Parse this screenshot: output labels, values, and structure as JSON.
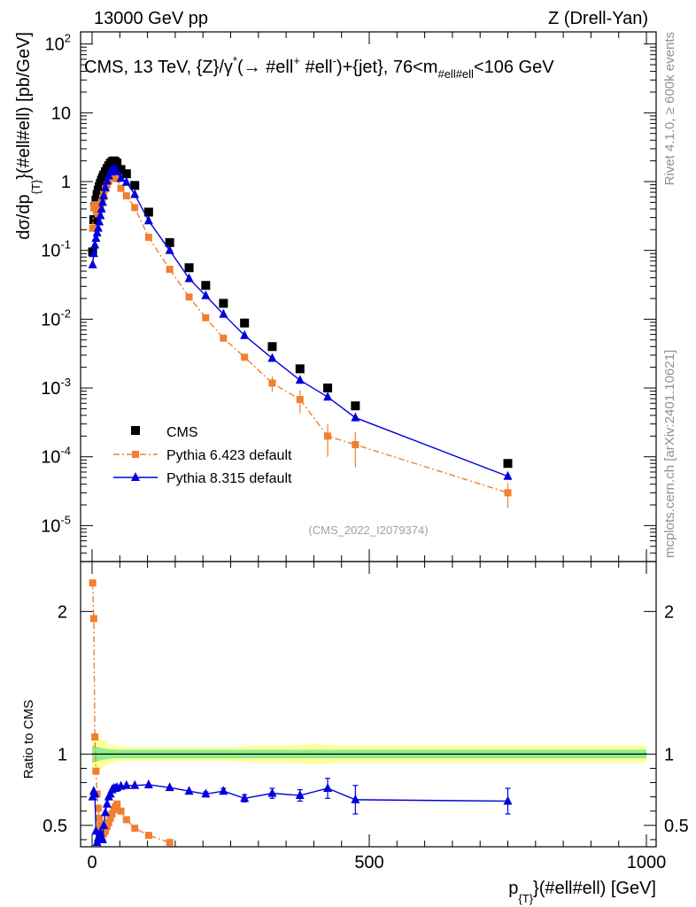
{
  "header": {
    "left": "13000 GeV pp",
    "right": "Z (Drell-Yan)"
  },
  "side_text": {
    "rivet": "Rivet 4.1.0, ≥ 600k events",
    "mcplots": "mcplots.cern.ch [arXiv:2401.10621]"
  },
  "analysis_id": "(CMS_2022_I2079374)",
  "colors": {
    "data": "#000000",
    "pythia6": "#f08030",
    "pythia8": "#0000dd",
    "band_inner": "#90ee90",
    "band_outer": "#ffff99"
  },
  "chart_data": [
    {
      "type": "scatter",
      "panel": "main",
      "title": "CMS, 13 TeV, {Z}/γ* (→ #ell+ #ell-)+{jet}, 76<m#ell#ell<106 GeV",
      "title_parts": {
        "main": "CMS, 13 TeV, {Z}/γ",
        "sup1": "*",
        "mid": "(→  #ell",
        "sup2": "+",
        "mid2": " #ell",
        "sup3": "-",
        "mid3": ")+{jet}, 76<m",
        "sub": "#ell#ell",
        "end": "<106 GeV"
      },
      "ylabel": "dσ/dp_{T}(#ell#ell) [pb/GeV]",
      "ylabel_parts": {
        "a": "dσ/dp",
        "sub": "{T}",
        "b": "}(#ell#ell) [pb/GeV]"
      },
      "yscale": "log",
      "ylim": [
        3e-06,
        150
      ],
      "xlim": [
        -5,
        1000
      ],
      "y_ticks": [
        {
          "base": "10",
          "exp": "2",
          "value": 100
        },
        {
          "base": "10",
          "exp": "",
          "value": 10
        },
        {
          "base": "1",
          "exp": "",
          "value": 1
        },
        {
          "base": "10",
          "exp": "-1",
          "value": 0.1
        },
        {
          "base": "10",
          "exp": "-2",
          "value": 0.01
        },
        {
          "base": "10",
          "exp": "-3",
          "value": 0.001
        },
        {
          "base": "10",
          "exp": "-4",
          "value": 0.0001
        },
        {
          "base": "10",
          "exp": "-5",
          "value": 1e-05
        }
      ],
      "legend": {
        "position": "bottom-left",
        "entries": [
          "CMS",
          "Pythia 6.423 default",
          "Pythia 8.315 default"
        ]
      },
      "series": [
        {
          "name": "CMS",
          "style": "square",
          "x": [
            1,
            3,
            5,
            7,
            9,
            11,
            13,
            15,
            17,
            19,
            21,
            24,
            27,
            30,
            33,
            36,
            39,
            42,
            45,
            52,
            62,
            77,
            102,
            140,
            175,
            205,
            237,
            275,
            325,
            375,
            425,
            475,
            750
          ],
          "y": [
            0.095,
            0.28,
            0.43,
            0.54,
            0.65,
            0.75,
            0.85,
            0.95,
            1.05,
            1.15,
            1.25,
            1.4,
            1.55,
            1.7,
            1.85,
            1.95,
            2.0,
            1.95,
            1.85,
            1.5,
            1.3,
            0.88,
            0.36,
            0.13,
            0.056,
            0.031,
            0.017,
            0.0088,
            0.004,
            0.0019,
            0.001,
            0.00055,
            8e-05
          ]
        },
        {
          "name": "Pythia 6.423 default",
          "style": "square-dashdot",
          "x": [
            1,
            3,
            5,
            7,
            9,
            11,
            13,
            15,
            17,
            19,
            21,
            24,
            27,
            30,
            33,
            36,
            39,
            42,
            45,
            52,
            62,
            77,
            102,
            140,
            175,
            205,
            237,
            275,
            325,
            375,
            425,
            475,
            750
          ],
          "y": [
            0.21,
            0.42,
            0.46,
            0.44,
            0.38,
            0.34,
            0.36,
            0.42,
            0.5,
            0.58,
            0.66,
            0.78,
            0.9,
            1.02,
            1.12,
            1.2,
            1.22,
            1.18,
            1.1,
            0.8,
            0.62,
            0.42,
            0.155,
            0.053,
            0.021,
            0.0105,
            0.0053,
            0.0028,
            0.00118,
            0.00068,
            0.0002,
            0.00015,
            3e-05
          ],
          "yerr": [
            0,
            0,
            0,
            0,
            0,
            0,
            0,
            0,
            0,
            0,
            0,
            0,
            0,
            0,
            0,
            0,
            0,
            0,
            0,
            0,
            0,
            0,
            0,
            0,
            0,
            0,
            0,
            0,
            0.0003,
            0.00025,
            0.0001,
            8e-05,
            1.2e-05
          ]
        },
        {
          "name": "Pythia 8.315 default",
          "style": "triangle-solid",
          "x": [
            1,
            3,
            5,
            7,
            9,
            11,
            13,
            15,
            17,
            19,
            21,
            24,
            27,
            30,
            33,
            36,
            39,
            42,
            45,
            52,
            62,
            77,
            102,
            140,
            175,
            205,
            237,
            275,
            325,
            375,
            425,
            475,
            750
          ],
          "y": [
            0.062,
            0.09,
            0.12,
            0.15,
            0.18,
            0.21,
            0.26,
            0.32,
            0.4,
            0.5,
            0.62,
            0.82,
            1.02,
            1.22,
            1.38,
            1.48,
            1.52,
            1.48,
            1.4,
            1.12,
            0.98,
            0.65,
            0.27,
            0.1,
            0.039,
            0.022,
            0.0118,
            0.0058,
            0.0027,
            0.0013,
            0.00074,
            0.00037,
            5.2e-05
          ]
        }
      ]
    },
    {
      "type": "line",
      "panel": "ratio",
      "ylabel": "Ratio to CMS",
      "xlabel": "p_{T}(#ell#ell) [GeV]",
      "xlabel_parts": {
        "a": "p",
        "sub": "{T}",
        "b": "}(#ell#ell) [GeV]"
      },
      "ylim": [
        0.35,
        2.35
      ],
      "xlim": [
        -5,
        1000
      ],
      "y_ticks": [
        "0.5",
        "1",
        "2"
      ],
      "y_tick_values": [
        0.5,
        1,
        2
      ],
      "x_ticks": [
        "0",
        "500",
        "1000"
      ],
      "x_tick_values": [
        0,
        500,
        1000
      ],
      "band": {
        "x": [
          0,
          10,
          20,
          30,
          40,
          50,
          75,
          100,
          150,
          200,
          250,
          300,
          350,
          400,
          450,
          1000
        ],
        "inner_half_width": [
          0.06,
          0.05,
          0.04,
          0.035,
          0.03,
          0.03,
          0.03,
          0.03,
          0.03,
          0.03,
          0.03,
          0.03,
          0.03,
          0.03,
          0.03,
          0.03
        ],
        "outer_half_width": [
          0.13,
          0.12,
          0.09,
          0.07,
          0.06,
          0.05,
          0.05,
          0.05,
          0.05,
          0.05,
          0.05,
          0.06,
          0.06,
          0.07,
          0.06,
          0.06
        ]
      },
      "series": [
        {
          "name": "Pythia 6.423 default",
          "style": "square-dashdot",
          "x": [
            1,
            3,
            5,
            7,
            9,
            11,
            13,
            15,
            17,
            19,
            21,
            24,
            27,
            30,
            33,
            36,
            39,
            42,
            45,
            52,
            62,
            77,
            102,
            140
          ],
          "y": [
            2.2,
            1.95,
            1.12,
            0.88,
            0.72,
            0.62,
            0.55,
            0.5,
            0.47,
            0.45,
            0.44,
            0.46,
            0.49,
            0.52,
            0.55,
            0.58,
            0.61,
            0.63,
            0.65,
            0.6,
            0.54,
            0.48,
            0.43,
            0.38
          ]
        },
        {
          "name": "Pythia 8.315 default",
          "style": "triangle-solid",
          "x": [
            1,
            3,
            5,
            7,
            9,
            11,
            13,
            15,
            17,
            19,
            21,
            24,
            27,
            30,
            33,
            36,
            39,
            42,
            45,
            52,
            62,
            77,
            102,
            140,
            175,
            205,
            237,
            275,
            325,
            375,
            425,
            475,
            750
          ],
          "y": [
            0.7,
            0.74,
            0.72,
            0.46,
            0.38,
            0.41,
            0.43,
            0.45,
            0.42,
            0.4,
            0.5,
            0.59,
            0.65,
            0.7,
            0.72,
            0.75,
            0.76,
            0.76,
            0.765,
            0.775,
            0.78,
            0.78,
            0.785,
            0.765,
            0.74,
            0.72,
            0.74,
            0.69,
            0.725,
            0.71,
            0.76,
            0.68,
            0.67
          ],
          "yerr": [
            0,
            0,
            0,
            0,
            0,
            0,
            0,
            0,
            0,
            0,
            0,
            0,
            0,
            0,
            0,
            0,
            0,
            0,
            0,
            0,
            0,
            0,
            0,
            0,
            0,
            0.015,
            0.02,
            0.025,
            0.035,
            0.04,
            0.07,
            0.1,
            0.09
          ]
        }
      ]
    }
  ]
}
